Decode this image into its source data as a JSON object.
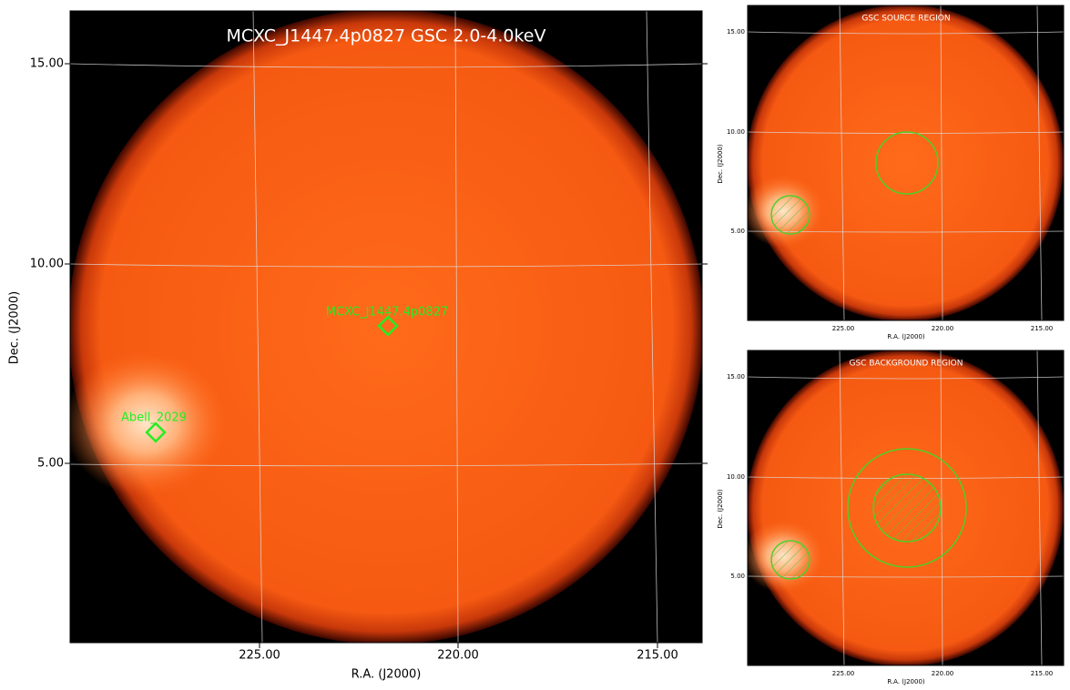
{
  "main": {
    "title": "MCXC_J1447.4p0827 GSC 2.0-4.0keV",
    "x_axis_label": "R.A. (J2000)",
    "y_axis_label": "Dec. (J2000)",
    "x_ticks": [
      "225.00",
      "220.00",
      "215.00"
    ],
    "y_ticks": [
      "15.00",
      "10.00",
      "5.00"
    ],
    "sources": [
      "MCXC_J1447.4p0827",
      "Abell_2029"
    ]
  },
  "source_panel": {
    "title": "GSC SOURCE REGION",
    "x_axis_label": "R.A. (J2000)",
    "y_axis_label": "Dec. (J2000)",
    "x_ticks": [
      "225.00",
      "220.00",
      "215.00"
    ],
    "y_ticks": [
      "15.00",
      "10.00",
      "5.00"
    ]
  },
  "background_panel": {
    "title": "GSC BACKGROUND REGION",
    "x_axis_label": "R.A. (J2000)",
    "y_axis_label": "Dec. (J2000)",
    "x_ticks": [
      "225.00",
      "220.00",
      "215.00"
    ],
    "y_ticks": [
      "15.00",
      "10.00",
      "5.00"
    ]
  }
}
